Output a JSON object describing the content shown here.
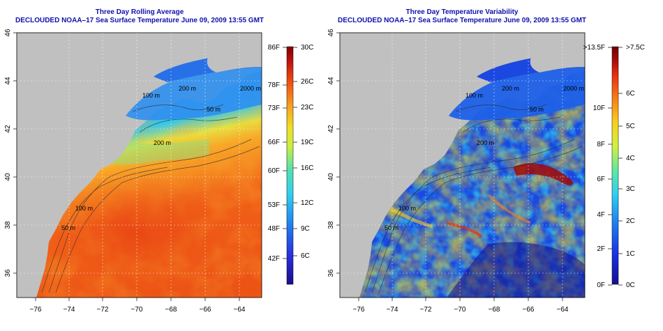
{
  "left_panel": {
    "title_line1": "Three Day Rolling Average",
    "title_line2": "DECLOUDED NOAA–17 Sea Surface Temperature June 09, 2009 13:55 GMT",
    "x_ticks": [
      "−76",
      "−74",
      "−72",
      "−70",
      "−68",
      "−66",
      "−64"
    ],
    "y_ticks": [
      "36",
      "38",
      "40",
      "42",
      "44",
      "46"
    ],
    "contour_labels": [
      "200 m",
      "2000 m",
      "100 m",
      "200 m",
      "50 m",
      "100 m",
      "50 m"
    ],
    "colorbar": {
      "f_labels": [
        "86F",
        "78F",
        "73F",
        "66F",
        "60F",
        "53F",
        "48F",
        "42F"
      ],
      "c_labels": [
        "30C",
        "26C",
        "23C",
        "19C",
        "16C",
        "12C",
        "9C",
        "6C"
      ]
    }
  },
  "right_panel": {
    "title_line1": "Three Day Temperature Variability",
    "title_line2": "DECLOUDED NOAA–17 Sea Surface Temperature June 09, 2009 13:55 GMT",
    "x_ticks": [
      "−76",
      "−74",
      "−72",
      "−70",
      "−68",
      "−66",
      "−64"
    ],
    "y_ticks": [
      "36",
      "38",
      "40",
      "42",
      "44",
      "46"
    ],
    "contour_labels": [
      "200 m",
      "2000 m",
      "100 m",
      "200 m",
      "50 m",
      "100 m",
      "50 m"
    ],
    "colorbar": {
      "f_labels": ">13.5F,10F,8F,6F,4F,2F,0F",
      "f_list": [
        ">13.5F",
        "10F",
        "8F",
        "6F",
        "4F",
        "2F",
        "0F"
      ],
      "c_labels": [
        ">7.5C",
        "6C",
        "5C",
        "4C",
        "3C",
        "2C",
        "1C",
        "0C"
      ]
    }
  },
  "colors": {
    "land": "#c0c0c0",
    "title": "#1010b0",
    "sst_scale": [
      "#1a0f8c",
      "#2a2ce0",
      "#1f80f0",
      "#2fd0f0",
      "#50e0b0",
      "#c8f040",
      "#f0e020",
      "#f8a020",
      "#f05010",
      "#c01010",
      "#800000"
    ],
    "var_scale": [
      "#14108a",
      "#1a2fe0",
      "#1e80f0",
      "#30d0f0",
      "#60e8a0",
      "#d0f040",
      "#f8d020",
      "#f88018",
      "#e83010",
      "#a00808",
      "#700000"
    ]
  }
}
